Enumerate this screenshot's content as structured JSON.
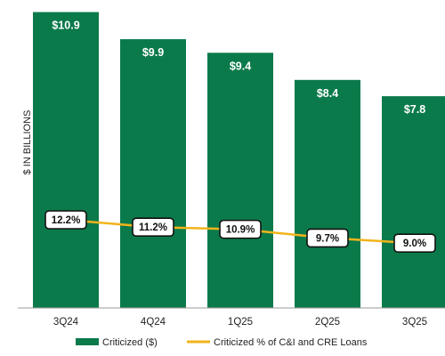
{
  "chart_data": {
    "type": "bar",
    "title": "",
    "ylabel": "$ IN BILLIONS",
    "categories": [
      "3Q24",
      "4Q24",
      "1Q25",
      "2Q25",
      "3Q25"
    ],
    "series": [
      {
        "name": "Criticized ($)",
        "type": "bar",
        "values": [
          10.9,
          9.9,
          9.4,
          8.4,
          7.8
        ],
        "labels": [
          "$10.9",
          "$9.9",
          "$9.4",
          "$8.4",
          "$7.8"
        ],
        "color": "#0b7a4b"
      },
      {
        "name": "Criticized % of C&I and CRE Loans",
        "type": "line",
        "values": [
          12.2,
          11.2,
          10.9,
          9.7,
          9.0
        ],
        "labels": [
          "12.2%",
          "11.2%",
          "10.9%",
          "9.7%",
          "9.0%"
        ],
        "color": "#f2b41c"
      }
    ],
    "legend_position": "bottom",
    "grid": false
  }
}
